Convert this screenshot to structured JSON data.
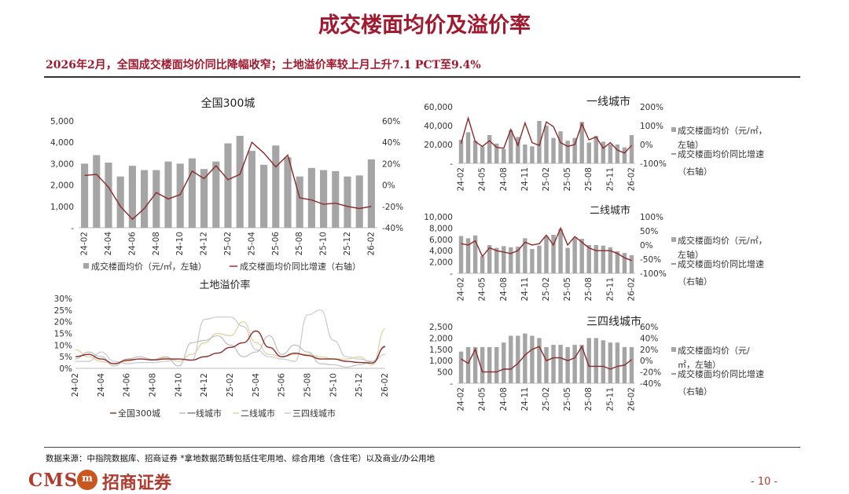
{
  "title": "成交楼面均价及溢价率",
  "subtitle": "2026年2月，全国成交楼面均价同比降幅收窄；土地溢价率较上月上升7.1 PCT至9.4%",
  "source": "数据来源：中指院数据库、招商证券    *拿地数据范畴包括住宅用地、综合用地（含住宅）以及商业/办公用地",
  "logo": {
    "cms": "CMS",
    "badge": "m",
    "name": "招商证券"
  },
  "page_number": "- 10 -",
  "colors": {
    "bar": "#a5a5a5",
    "growth_line": "#8b2a2a",
    "accent": "#a0192e"
  },
  "chart_data": [
    {
      "id": "national",
      "type": "bar",
      "title": "全国300城",
      "x": [
        "24-02",
        "24-03",
        "24-04",
        "24-05",
        "24-06",
        "24-07",
        "24-08",
        "24-09",
        "24-10",
        "24-11",
        "24-12",
        "25-01",
        "25-02",
        "25-03",
        "25-04",
        "25-05",
        "25-06",
        "25-07",
        "25-08",
        "25-09",
        "25-10",
        "25-11",
        "25-12",
        "26-01",
        "26-02"
      ],
      "x_tick_labels": [
        "24-02",
        "24-04",
        "24-06",
        "24-08",
        "24-10",
        "24-12",
        "25-02",
        "25-04",
        "25-06",
        "25-08",
        "25-10",
        "25-12",
        "26-02"
      ],
      "y_left": {
        "range": [
          0,
          5000
        ],
        "ticks": [
          "-",
          "1,000",
          "2,000",
          "3,000",
          "4,000",
          "5,000"
        ]
      },
      "y_right": {
        "range": [
          -40,
          60
        ],
        "ticks": [
          "-40%",
          "-20%",
          "0%",
          "20%",
          "40%",
          "60%"
        ]
      },
      "legend": [
        "成交楼面均价（元/㎡，左轴）",
        "成交楼面均价同比增速（右轴）"
      ],
      "legend_position": "bottom",
      "series": [
        {
          "name": "成交楼面均价（元/㎡，左轴）",
          "kind": "bar",
          "axis": "left",
          "values": [
            3000,
            3400,
            3050,
            2400,
            2900,
            2700,
            2700,
            3100,
            3000,
            3250,
            2750,
            3100,
            3950,
            4300,
            3600,
            2950,
            3850,
            3300,
            2400,
            2800,
            2700,
            2650,
            2400,
            2450,
            3200
          ]
        },
        {
          "name": "成交楼面均价同比增速（右轴）",
          "kind": "line",
          "axis": "right",
          "values": [
            9,
            10,
            -2,
            -20,
            -32,
            -22,
            -7,
            -13,
            -9,
            13,
            6,
            18,
            5,
            10,
            40,
            30,
            17,
            28,
            -12,
            -14,
            -18,
            -17,
            -20,
            -22,
            -20
          ]
        }
      ]
    },
    {
      "id": "land-premium",
      "type": "line",
      "title": "土地溢价率",
      "x": [
        "24-02",
        "24-03",
        "24-04",
        "24-05",
        "24-06",
        "24-07",
        "24-08",
        "24-09",
        "24-10",
        "24-11",
        "24-12",
        "25-01",
        "25-02",
        "25-03",
        "25-04",
        "25-05",
        "25-06",
        "25-07",
        "25-08",
        "25-09",
        "25-10",
        "25-11",
        "25-12",
        "26-01",
        "26-02"
      ],
      "x_tick_labels": [
        "24-02",
        "24-04",
        "24-06",
        "24-08",
        "24-10",
        "24-12",
        "25-02",
        "25-04",
        "25-06",
        "25-08",
        "25-10",
        "25-12",
        "26-02"
      ],
      "y": {
        "range": [
          0,
          30
        ],
        "ticks": [
          "0%",
          "5%",
          "10%",
          "15%",
          "20%",
          "25%",
          "30%"
        ]
      },
      "legend": [
        "全国300城",
        "一线城市",
        "二线城市",
        "三四线城市"
      ],
      "legend_position": "bottom",
      "series": [
        {
          "name": "全国300城",
          "values": [
            5,
            6,
            4,
            2,
            3.5,
            4,
            3.6,
            4,
            4,
            3.5,
            5,
            6.5,
            9,
            11,
            16,
            9,
            5,
            6.5,
            5.5,
            4,
            4,
            3,
            2.5,
            2.3,
            9.4
          ]
        },
        {
          "name": "一线城市",
          "values": [
            4,
            7,
            5,
            1,
            4,
            5,
            3.8,
            5,
            1,
            11,
            12,
            14,
            10,
            5,
            7,
            14,
            6,
            10,
            7,
            2,
            1.5,
            0.5,
            1.5,
            3,
            9
          ]
        },
        {
          "name": "二线城市",
          "values": [
            8,
            5,
            3,
            2,
            3,
            4,
            3.7,
            4.5,
            3,
            6,
            11,
            15,
            14,
            20,
            11,
            6,
            5,
            6,
            6,
            5,
            4,
            4,
            5,
            1.5,
            17
          ]
        },
        {
          "name": "三四线城市",
          "values": [
            3,
            3,
            7,
            3,
            2,
            2.5,
            2.5,
            3,
            4,
            3.5,
            21,
            22,
            22,
            18,
            8,
            5,
            4,
            3,
            23,
            25,
            12,
            5,
            4,
            3,
            6
          ]
        }
      ]
    },
    {
      "id": "tier1",
      "type": "bar",
      "title": "一线城市",
      "x": [
        "24-02",
        "24-03",
        "24-04",
        "24-05",
        "24-06",
        "24-07",
        "24-08",
        "24-09",
        "24-10",
        "24-11",
        "24-12",
        "25-01",
        "25-02",
        "25-03",
        "25-04",
        "25-05",
        "25-06",
        "25-07",
        "25-08",
        "25-09",
        "25-10",
        "25-11",
        "25-12",
        "26-01",
        "26-02"
      ],
      "x_tick_labels": [
        "24-02",
        "24-05",
        "24-08",
        "24-11",
        "25-02",
        "25-05",
        "25-08",
        "25-11",
        "26-02"
      ],
      "y_left": {
        "range": [
          0,
          60000
        ],
        "ticks": [
          "-",
          "20,000",
          "40,000",
          "60,000"
        ]
      },
      "y_right": {
        "range": [
          -100,
          200
        ],
        "ticks": [
          "-100%",
          "0%",
          "100%",
          "200%"
        ]
      },
      "legend": [
        "成交楼面均价（元/㎡，左轴）",
        "成交楼面均价同比增速（右轴）"
      ],
      "legend_position": "right",
      "series": [
        {
          "name": "成交楼面均价（元/㎡，左轴）",
          "kind": "bar",
          "axis": "left",
          "values": [
            25000,
            33000,
            24000,
            18000,
            30000,
            21000,
            15000,
            35000,
            28000,
            20000,
            18000,
            45000,
            40000,
            27000,
            34000,
            24000,
            27000,
            44000,
            22000,
            29000,
            23000,
            20000,
            20000,
            17000,
            30000
          ]
        },
        {
          "name": "成交楼面均价同比增速（右轴）",
          "kind": "line",
          "axis": "right",
          "values": [
            5,
            140,
            15,
            -10,
            20,
            -15,
            -20,
            80,
            -5,
            115,
            10,
            -5,
            120,
            95,
            10,
            -10,
            0,
            110,
            25,
            40,
            -20,
            10,
            -30,
            -45,
            -5
          ]
        }
      ]
    },
    {
      "id": "tier2",
      "type": "bar",
      "title": "二线城市",
      "x": [
        "24-02",
        "24-03",
        "24-04",
        "24-05",
        "24-06",
        "24-07",
        "24-08",
        "24-09",
        "24-10",
        "24-11",
        "24-12",
        "25-01",
        "25-02",
        "25-03",
        "25-04",
        "25-05",
        "25-06",
        "25-07",
        "25-08",
        "25-09",
        "25-10",
        "25-11",
        "25-12",
        "26-01",
        "26-02"
      ],
      "x_tick_labels": [
        "24-02",
        "24-05",
        "24-08",
        "24-11",
        "25-02",
        "25-05",
        "25-08",
        "25-11",
        "26-02"
      ],
      "y_left": {
        "range": [
          0,
          10000
        ],
        "ticks": [
          "-",
          "2,000",
          "4,000",
          "6,000",
          "8,000",
          "10,000"
        ]
      },
      "y_right": {
        "range": [
          -100,
          100
        ],
        "ticks": [
          "-100%",
          "-50%",
          "0%",
          "50%",
          "100%"
        ]
      },
      "legend": [
        "成交楼面均价（元/㎡，左轴）",
        "成交楼面均价同比增速（右轴）"
      ],
      "legend_position": "right",
      "series": [
        {
          "name": "成交楼面均价（元/㎡，左轴）",
          "kind": "bar",
          "axis": "left",
          "values": [
            6600,
            6200,
            6700,
            3000,
            5000,
            4500,
            4800,
            4600,
            4700,
            6200,
            4300,
            4900,
            6500,
            6800,
            7800,
            4500,
            6300,
            6100,
            5000,
            5000,
            4900,
            4600,
            3900,
            3600,
            3200
          ]
        },
        {
          "name": "成交楼面均价同比增速（右轴）",
          "kind": "line",
          "axis": "right",
          "values": [
            5,
            0,
            15,
            -40,
            -10,
            -20,
            -25,
            -30,
            -20,
            10,
            0,
            5,
            35,
            0,
            60,
            0,
            30,
            10,
            -10,
            -20,
            -20,
            -20,
            -30,
            -45,
            -55
          ]
        }
      ]
    },
    {
      "id": "tier34",
      "type": "bar",
      "title": "三四线城市",
      "x": [
        "24-02",
        "24-03",
        "24-04",
        "24-05",
        "24-06",
        "24-07",
        "24-08",
        "24-09",
        "24-10",
        "24-11",
        "24-12",
        "25-01",
        "25-02",
        "25-03",
        "25-04",
        "25-05",
        "25-06",
        "25-07",
        "25-08",
        "25-09",
        "25-10",
        "25-11",
        "25-12",
        "26-01",
        "26-02"
      ],
      "x_tick_labels": [
        "24-02",
        "24-05",
        "24-08",
        "24-11",
        "25-02",
        "25-05",
        "25-08",
        "25-11",
        "26-02"
      ],
      "y_left": {
        "range": [
          0,
          2500
        ],
        "ticks": [
          "-",
          "500",
          "1,000",
          "1,500",
          "2,000",
          "2,500"
        ]
      },
      "y_right": {
        "range": [
          -40,
          60
        ],
        "ticks": [
          "-40%",
          "-20%",
          "0%",
          "20%",
          "40%",
          "60%"
        ]
      },
      "legend": [
        "成交楼面均价（元/㎡，左轴）",
        "成交楼面均价同比增速（右轴）"
      ],
      "legend_position": "right",
      "series": [
        {
          "name": "成交楼面均价（元/㎡，左轴）",
          "kind": "bar",
          "axis": "left",
          "values": [
            1400,
            1600,
            1600,
            1600,
            1600,
            1600,
            1800,
            2100,
            2100,
            2200,
            2100,
            2000,
            1600,
            1700,
            1700,
            1600,
            1700,
            1700,
            2000,
            2000,
            1900,
            1800,
            1800,
            1600,
            1600
          ]
        },
        {
          "name": "成交楼面均价同比增速（右轴）",
          "kind": "line",
          "axis": "right",
          "values": [
            3,
            -5,
            20,
            -20,
            -20,
            -20,
            -15,
            -15,
            -5,
            10,
            20,
            25,
            0,
            5,
            5,
            0,
            5,
            25,
            -10,
            -10,
            -10,
            -15,
            -10,
            -8,
            2
          ]
        }
      ]
    }
  ]
}
